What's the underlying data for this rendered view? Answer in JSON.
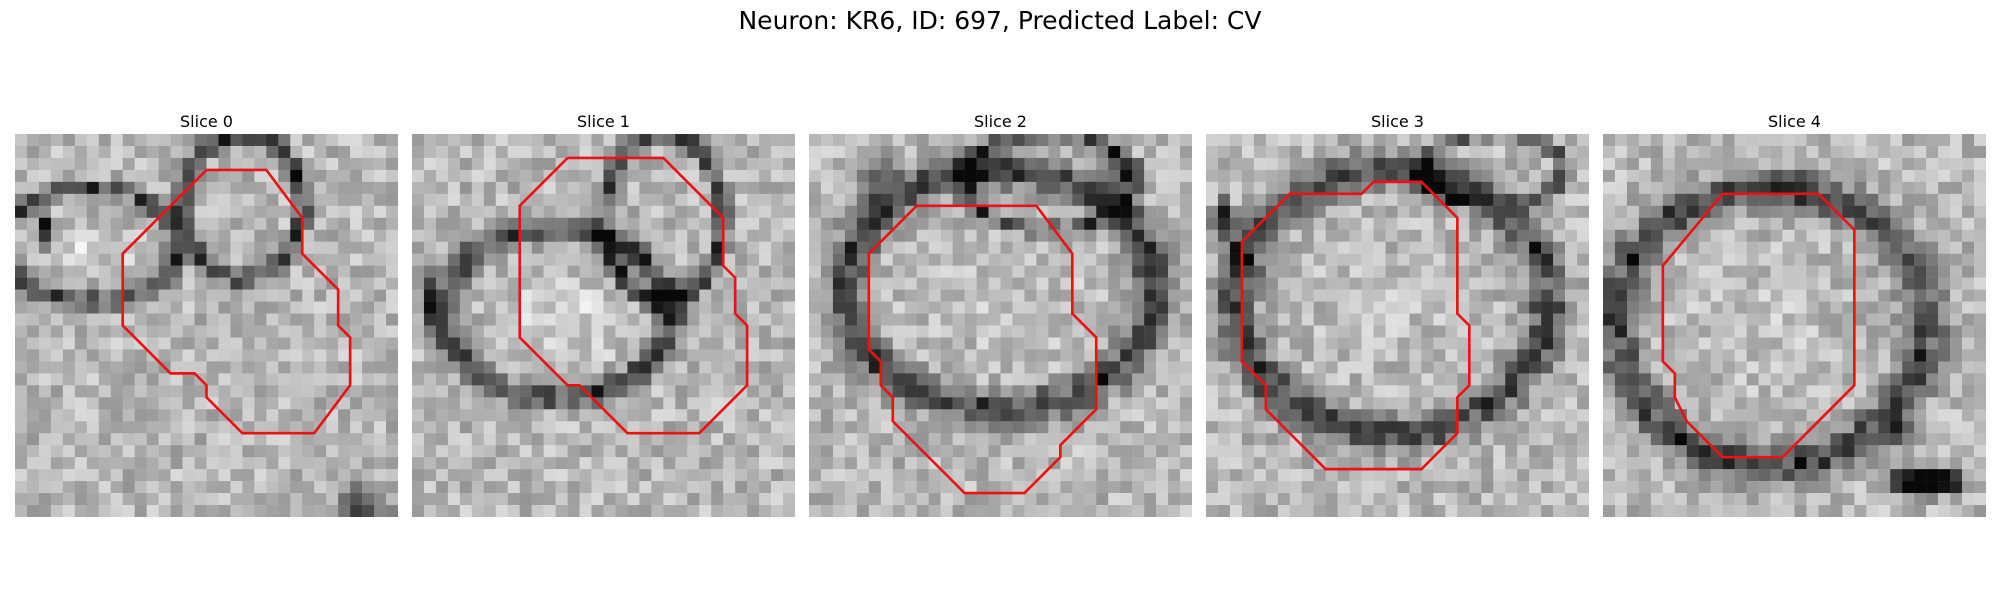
{
  "figure": {
    "title": "Neuron: KR6, ID: 697, Predicted Label: CV",
    "outline_color": "#ee1111"
  },
  "panels": [
    {
      "title": "Slice 0",
      "image": "grayscale-em-microscopy-patch"
    },
    {
      "title": "Slice 1",
      "image": "grayscale-em-microscopy-patch"
    },
    {
      "title": "Slice 2",
      "image": "grayscale-em-microscopy-patch"
    },
    {
      "title": "Slice 3",
      "image": "grayscale-em-microscopy-patch"
    },
    {
      "title": "Slice 4",
      "image": "grayscale-em-microscopy-patch"
    }
  ]
}
